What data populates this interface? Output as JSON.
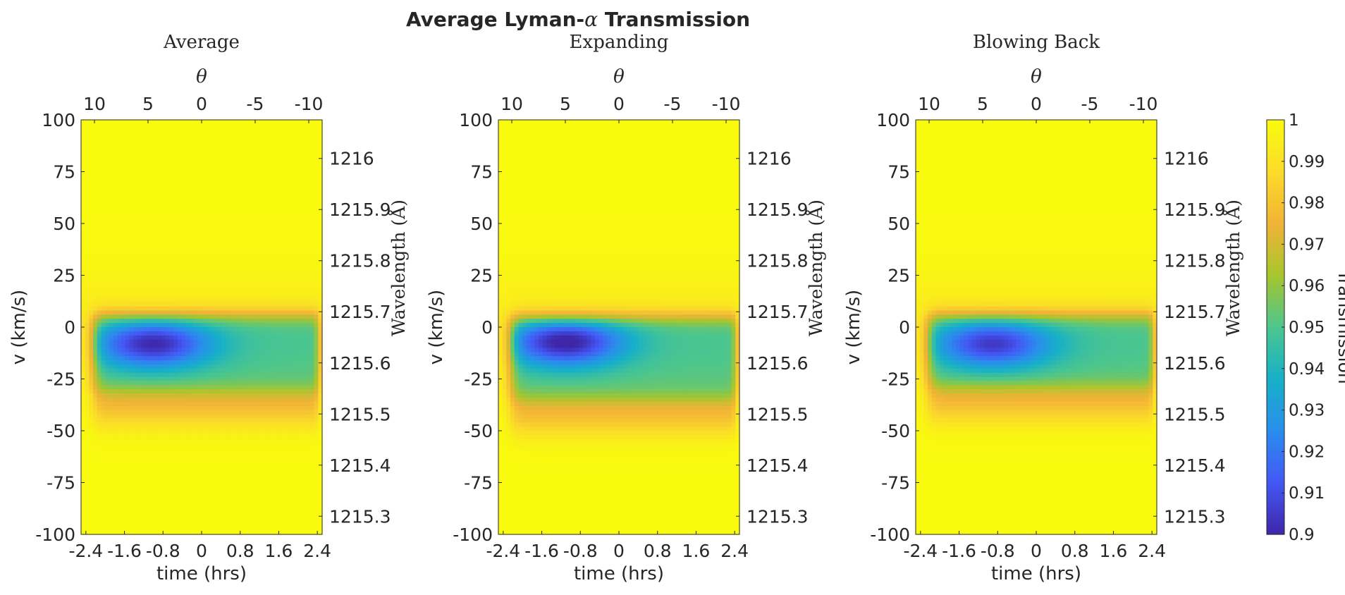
{
  "figure": {
    "title_prefix": "Average Lyman-",
    "title_symbol": "α",
    "title_suffix": " Transmission"
  },
  "chart_data": [
    {
      "type": "heatmap",
      "title": "Average",
      "xlabel": "time (hrs)",
      "ylabel": "v (km/s)",
      "x2label": "θ",
      "y2label": "Wavelength (Å)",
      "xlim": [
        -2.5,
        2.5
      ],
      "ylim": [
        -100,
        100
      ],
      "x_ticks": [
        -2.4,
        -1.6,
        -0.8,
        0,
        0.8,
        1.6,
        2.4
      ],
      "x_tick_labels": [
        "-2.4",
        "-1.6",
        "-0.8",
        "0",
        "0.8",
        "1.6",
        "2.4"
      ],
      "y_ticks": [
        100,
        75,
        50,
        25,
        0,
        -25,
        -50,
        -75,
        -100
      ],
      "y_tick_labels": [
        "100",
        "75",
        "50",
        "25",
        "0",
        "-25",
        "-50",
        "-75",
        "-100"
      ],
      "x2_ticks": [
        10,
        5,
        0,
        -5,
        -10
      ],
      "x2_tick_labels": [
        "10",
        "5",
        "0",
        "-5",
        "-10"
      ],
      "y2_ticks": [
        1216.0,
        1215.9,
        1215.8,
        1215.7,
        1215.6,
        1215.5,
        1215.4,
        1215.3
      ],
      "y2_tick_labels": [
        "1216",
        "1215.9",
        "1215.8",
        "1215.7",
        "1215.6",
        "1215.5",
        "1215.4",
        "1215.3"
      ],
      "absorption": {
        "v_min": -32,
        "v_max": 6,
        "min_transmission": 0.906,
        "v_at_min": -8,
        "time_at_min": -1.0,
        "tail_time_end": 2.4
      }
    },
    {
      "type": "heatmap",
      "title": "Expanding",
      "xlabel": "time (hrs)",
      "ylabel": "v (km/s)",
      "x2label": "θ",
      "y2label": "Wavelength (Å)",
      "xlim": [
        -2.5,
        2.5
      ],
      "ylim": [
        -100,
        100
      ],
      "x_ticks": [
        -2.4,
        -1.6,
        -0.8,
        0,
        0.8,
        1.6,
        2.4
      ],
      "x_tick_labels": [
        "-2.4",
        "-1.6",
        "-0.8",
        "0",
        "0.8",
        "1.6",
        "2.4"
      ],
      "y_ticks": [
        100,
        75,
        50,
        25,
        0,
        -25,
        -50,
        -75,
        -100
      ],
      "y_tick_labels": [
        "100",
        "75",
        "50",
        "25",
        "0",
        "-25",
        "-50",
        "-75",
        "-100"
      ],
      "x2_ticks": [
        10,
        5,
        0,
        -5,
        -10
      ],
      "x2_tick_labels": [
        "10",
        "5",
        "0",
        "-5",
        "-10"
      ],
      "y2_ticks": [
        1216.0,
        1215.9,
        1215.8,
        1215.7,
        1215.6,
        1215.5,
        1215.4,
        1215.3
      ],
      "y2_tick_labels": [
        "1216",
        "1215.9",
        "1215.8",
        "1215.7",
        "1215.6",
        "1215.5",
        "1215.4",
        "1215.3"
      ],
      "absorption": {
        "v_min": -36,
        "v_max": 5,
        "min_transmission": 0.903,
        "v_at_min": -7,
        "time_at_min": -1.1,
        "tail_time_end": 2.4
      }
    },
    {
      "type": "heatmap",
      "title": "Blowing Back",
      "xlabel": "time (hrs)",
      "ylabel": "v (km/s)",
      "x2label": "θ",
      "y2label": "Wavelength (Å)",
      "xlim": [
        -2.5,
        2.5
      ],
      "ylim": [
        -100,
        100
      ],
      "x_ticks": [
        -2.4,
        -1.6,
        -0.8,
        0,
        0.8,
        1.6,
        2.4
      ],
      "x_tick_labels": [
        "-2.4",
        "-1.6",
        "-0.8",
        "0",
        "0.8",
        "1.6",
        "2.4"
      ],
      "y_ticks": [
        100,
        75,
        50,
        25,
        0,
        -25,
        -50,
        -75,
        -100
      ],
      "y_tick_labels": [
        "100",
        "75",
        "50",
        "25",
        "0",
        "-25",
        "-50",
        "-75",
        "-100"
      ],
      "x2_ticks": [
        10,
        5,
        0,
        -5,
        -10
      ],
      "x2_tick_labels": [
        "10",
        "5",
        "0",
        "-5",
        "-10"
      ],
      "y2_ticks": [
        1216.0,
        1215.9,
        1215.8,
        1215.7,
        1215.6,
        1215.5,
        1215.4,
        1215.3
      ],
      "y2_tick_labels": [
        "1216",
        "1215.9",
        "1215.8",
        "1215.7",
        "1215.6",
        "1215.5",
        "1215.4",
        "1215.3"
      ],
      "absorption": {
        "v_min": -30,
        "v_max": 6,
        "min_transmission": 0.91,
        "v_at_min": -8,
        "time_at_min": -0.9,
        "tail_time_end": 2.4
      }
    }
  ],
  "colorbar": {
    "label": "Transmission",
    "range": [
      0.9,
      1.0
    ],
    "ticks": [
      1,
      0.99,
      0.98,
      0.97,
      0.96,
      0.95,
      0.94,
      0.93,
      0.92,
      0.91,
      0.9
    ],
    "tick_labels": [
      "1",
      "0.99",
      "0.98",
      "0.97",
      "0.96",
      "0.95",
      "0.94",
      "0.93",
      "0.92",
      "0.91",
      "0.9"
    ],
    "colormap": "parula",
    "colormap_stops": [
      "#3e26a8",
      "#4358f5",
      "#2a8ded",
      "#16b0c8",
      "#4cc68d",
      "#a6c62e",
      "#f2b337",
      "#fbdb2a",
      "#f9fb0e"
    ]
  }
}
